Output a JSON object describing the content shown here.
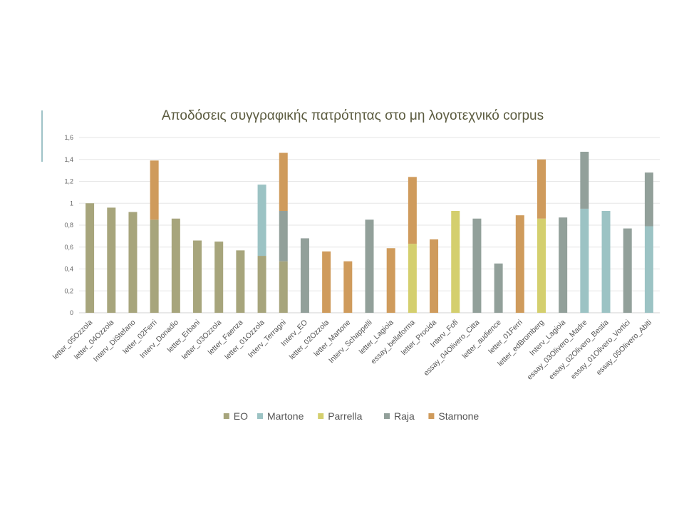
{
  "chart_data": {
    "type": "bar",
    "stacked": true,
    "title": "Αποδόσεις συγγραφικής πατρότητας στο μη λογοτεχνικό corpus",
    "xlabel": "",
    "ylabel": "",
    "ylim": [
      0,
      1.6
    ],
    "yticks": [
      "0",
      "0,2",
      "0,4",
      "0,6",
      "0,8",
      "1",
      "1,2",
      "1,4",
      "1,6"
    ],
    "grid": true,
    "legend_position": "bottom",
    "categories": [
      "letter_05Ozzola",
      "letter_04Ozzola",
      "Interv_DiStefano",
      "letter_02Ferri",
      "Interv_Donadio",
      "letter_Erbani",
      "letter_03Ozzola",
      "letter_Faenza",
      "letter_01Ozzola",
      "Interv_Terragni",
      "Interv_EO",
      "letter_02Ozzola",
      "letter_Martone",
      "Interv_Schappelli",
      "letter_Lagioia",
      "essay_bellaforma",
      "letter_Procida",
      "Interv_Fofi",
      "essay_04Olivero_Citta",
      "letter_audience",
      "letter_01Ferri",
      "letter_edBromberg",
      "Interv_Lagioia",
      "essay_03Olivero_Madre",
      "essay_02Olivero_Bestia",
      "essay_01Olivero_Vortici",
      "essay_05Olivero_Abiti"
    ],
    "series": [
      {
        "name": "EO",
        "color": "#a7a57c",
        "values": [
          1.0,
          0.96,
          0.92,
          0.85,
          0.86,
          0.66,
          0.65,
          0.57,
          0.52,
          0.47,
          0,
          0,
          0,
          0,
          0,
          0,
          0,
          0,
          0,
          0,
          0,
          0,
          0,
          0,
          0,
          0,
          0
        ]
      },
      {
        "name": "Martone",
        "color": "#9cc3c4",
        "values": [
          0,
          0,
          0,
          0,
          0,
          0,
          0,
          0,
          0.65,
          0,
          0,
          0,
          0,
          0,
          0,
          0,
          0,
          0,
          0,
          0,
          0,
          0,
          0,
          0.95,
          0.93,
          0,
          0.79
        ]
      },
      {
        "name": "Parrella",
        "color": "#d4cf6e",
        "values": [
          0,
          0,
          0,
          0,
          0,
          0,
          0,
          0,
          0,
          0,
          0,
          0,
          0,
          0,
          0,
          0.63,
          0,
          0.93,
          0,
          0,
          0,
          0.86,
          0,
          0,
          0,
          0,
          0
        ]
      },
      {
        "name": "Raja",
        "color": "#92a09a",
        "values": [
          0,
          0,
          0,
          0,
          0,
          0,
          0,
          0,
          0,
          0.46,
          0.68,
          0,
          0,
          0.85,
          0,
          0,
          0,
          0,
          0.86,
          0.45,
          0,
          0,
          0.87,
          0.52,
          0,
          0.77,
          0.49
        ]
      },
      {
        "name": "Starnone",
        "color": "#cf9b5c",
        "values": [
          0,
          0,
          0,
          0.54,
          0,
          0,
          0,
          0,
          0,
          0.53,
          0,
          0.56,
          0.47,
          0,
          0.59,
          0.61,
          0.67,
          0,
          0,
          0,
          0.89,
          0.54,
          0,
          0,
          0,
          0,
          0
        ]
      }
    ]
  }
}
